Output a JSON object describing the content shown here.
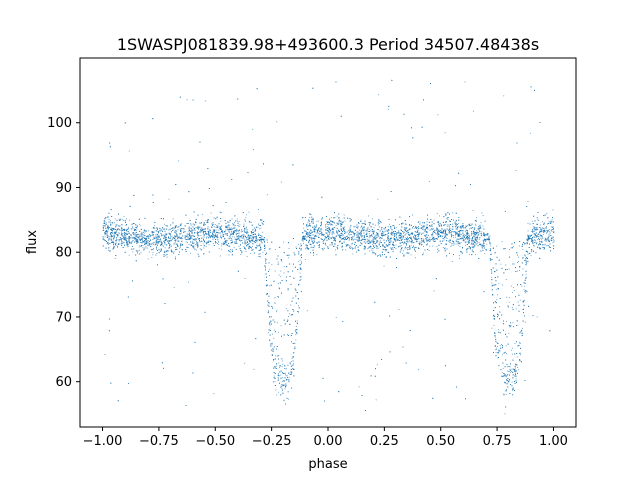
{
  "chart_data": {
    "type": "scatter",
    "title": "1SWASPJ081839.98+493600.3 Period 34507.48438s",
    "xlabel": "phase",
    "ylabel": "flux",
    "xlim": [
      -1.1,
      1.1
    ],
    "ylim": [
      53,
      110
    ],
    "xticks": [
      -1.0,
      -0.75,
      -0.5,
      -0.25,
      0.0,
      0.25,
      0.5,
      0.75,
      1.0
    ],
    "xtick_labels": [
      "−1.00",
      "−0.75",
      "−0.50",
      "−0.25",
      "0.00",
      "0.25",
      "0.50",
      "0.75",
      "1.00"
    ],
    "yticks": [
      60,
      70,
      80,
      90,
      100
    ],
    "ytick_labels": [
      "60",
      "70",
      "80",
      "90",
      "100"
    ],
    "grid": false,
    "point_color": "#1f77b4",
    "series": [
      {
        "values_summary": {
          "phase_range": [
            -1.0,
            1.0
          ],
          "baseline_flux": 82,
          "baseline_spread": [
            79,
            86
          ],
          "primary_eclipse_phases": [
            -0.2,
            0.8
          ],
          "eclipse_minimum_flux": 60,
          "secondary_dip_phases": [
            -0.5,
            0.5
          ],
          "secondary_dip_flux": 81
        },
        "points": [
          [
            -1.0,
            82.1
          ],
          [
            -0.95,
            82.6
          ],
          [
            -0.9,
            82.3
          ],
          [
            -0.85,
            82.8
          ],
          [
            -0.8,
            82.5
          ],
          [
            -0.75,
            82.4
          ],
          [
            -0.7,
            82.6
          ],
          [
            -0.65,
            82.2
          ],
          [
            -0.6,
            82.0
          ],
          [
            -0.55,
            81.8
          ],
          [
            -0.5,
            81.5
          ],
          [
            -0.45,
            81.9
          ],
          [
            -0.4,
            82.2
          ],
          [
            -0.35,
            81.8
          ],
          [
            -0.3,
            80.5
          ],
          [
            -0.27,
            75.0
          ],
          [
            -0.25,
            66.0
          ],
          [
            -0.22,
            61.0
          ],
          [
            -0.2,
            60.2
          ],
          [
            -0.17,
            61.2
          ],
          [
            -0.15,
            66.0
          ],
          [
            -0.12,
            74.0
          ],
          [
            -0.08,
            80.0
          ],
          [
            -0.05,
            81.5
          ],
          [
            0.0,
            82.2
          ],
          [
            0.05,
            82.5
          ],
          [
            0.1,
            82.8
          ],
          [
            0.15,
            82.6
          ],
          [
            0.2,
            82.9
          ],
          [
            0.25,
            82.7
          ],
          [
            0.3,
            82.6
          ],
          [
            0.35,
            82.4
          ],
          [
            0.4,
            82.2
          ],
          [
            0.45,
            81.8
          ],
          [
            0.5,
            81.4
          ],
          [
            0.55,
            81.8
          ],
          [
            0.6,
            82.0
          ],
          [
            0.65,
            81.6
          ],
          [
            0.7,
            80.4
          ],
          [
            0.73,
            75.0
          ],
          [
            0.75,
            66.0
          ],
          [
            0.78,
            61.0
          ],
          [
            0.8,
            60.2
          ],
          [
            0.83,
            61.2
          ],
          [
            0.85,
            66.0
          ],
          [
            0.88,
            74.0
          ],
          [
            0.92,
            80.0
          ],
          [
            0.95,
            81.2
          ],
          [
            1.0,
            81.8
          ]
        ]
      }
    ]
  }
}
